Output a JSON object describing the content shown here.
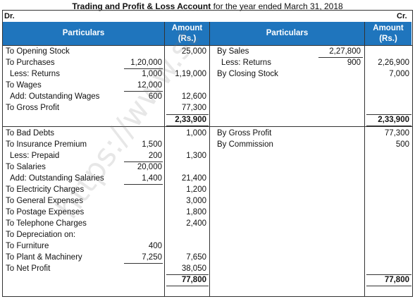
{
  "title": {
    "bold_part": "Trading and Profit & Loss Account",
    "rest": "for the year ended March 31, 2018"
  },
  "dr_label": "Dr.",
  "cr_label": "Cr.",
  "headers": {
    "particulars_left": "Particulars",
    "amount_left_line1": "Amount",
    "amount_left_line2": "(Rs.)",
    "particulars_right": "Particulars",
    "amount_right_line1": "Amount",
    "amount_right_line2": "(Rs.)"
  },
  "watermark": "https://www.st",
  "trading": {
    "debit": [
      {
        "label": "To Opening Stock",
        "sub": "",
        "amount": "25,000"
      },
      {
        "label": "To Purchases",
        "sub": "1,20,000",
        "amount": ""
      },
      {
        "label": "  Less: Returns",
        "sub": "1,000",
        "amount": "1,19,000"
      },
      {
        "label": "To Wages",
        "sub": "12,000",
        "amount": ""
      },
      {
        "label": "  Add: Outstanding Wages",
        "sub": "600",
        "amount": "12,600"
      },
      {
        "label": "To Gross Profit",
        "sub": "",
        "amount": "77,300"
      }
    ],
    "credit": [
      {
        "label": "By Sales",
        "sub": "2,27,800",
        "amount": ""
      },
      {
        "label": "  Less: Returns",
        "sub": "900",
        "amount": "2,26,900"
      },
      {
        "label": "By Closing Stock",
        "sub": "",
        "amount": "7,000"
      }
    ],
    "total_left": "2,33,900",
    "total_right": "2,33,900"
  },
  "pl": {
    "debit": [
      {
        "label": "To Bad Debts",
        "sub": "",
        "amount": "1,000"
      },
      {
        "label": "To Insurance Premium",
        "sub": "1,500",
        "amount": ""
      },
      {
        "label": "  Less: Prepaid",
        "sub": "200",
        "amount": "1,300"
      },
      {
        "label": "To Salaries",
        "sub": "20,000",
        "amount": ""
      },
      {
        "label": "  Add: Outstanding Salaries",
        "sub": "1,400",
        "amount": "21,400"
      },
      {
        "label": "To Electricity Charges",
        "sub": "",
        "amount": "1,200"
      },
      {
        "label": "To General Expenses",
        "sub": "",
        "amount": "3,000"
      },
      {
        "label": "To Postage Expenses",
        "sub": "",
        "amount": "1,800"
      },
      {
        "label": "To Telephone Charges",
        "sub": "",
        "amount": "2,400"
      },
      {
        "label": "To Depreciation on:",
        "sub": "",
        "amount": ""
      },
      {
        "label": "To Furniture",
        "sub": "400",
        "amount": ""
      },
      {
        "label": "To Plant & Machinery",
        "sub": "7,250",
        "amount": "7,650"
      },
      {
        "label": "To Net Profit",
        "sub": "",
        "amount": "38,050"
      }
    ],
    "credit": [
      {
        "label": "By Gross Profit",
        "sub": "",
        "amount": "77,300"
      },
      {
        "label": "By Commission",
        "sub": "",
        "amount": "500"
      }
    ],
    "total_left": "77,800",
    "total_right": "77,800"
  }
}
